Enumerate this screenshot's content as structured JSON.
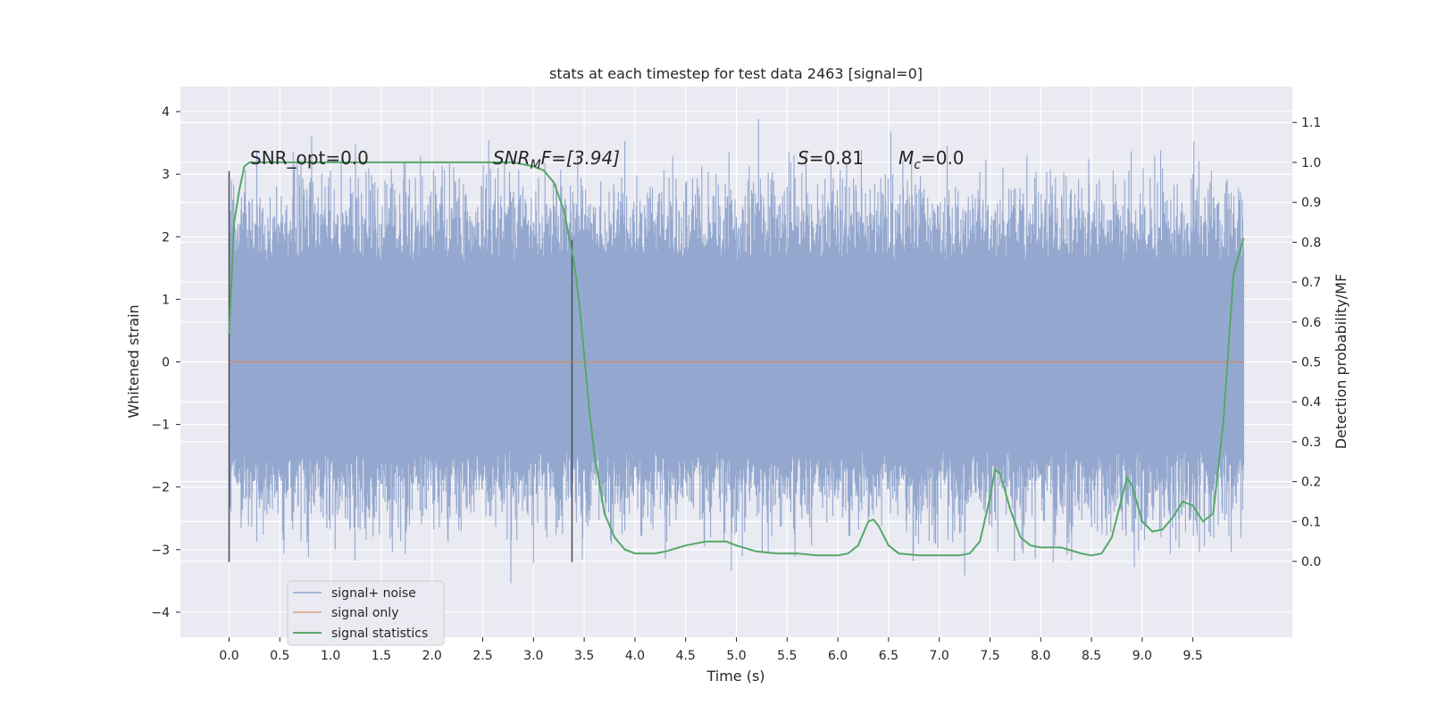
{
  "chart_data": {
    "type": "line",
    "title": "stats at each timestep for test data 2463 [signal=0]",
    "xlabel": "Time (s)",
    "ylabel": "Whitened strain",
    "y2label": "Detection probability/MF",
    "xlim": [
      -0.48,
      10.48
    ],
    "ylim": [
      -4.4,
      4.4
    ],
    "y2lim": [
      -0.19,
      1.19
    ],
    "x_ticks": [
      "0.0",
      "0.5",
      "1.0",
      "1.5",
      "2.0",
      "2.5",
      "3.0",
      "3.5",
      "4.0",
      "4.5",
      "5.0",
      "5.5",
      "6.0",
      "6.5",
      "7.0",
      "7.5",
      "8.0",
      "8.5",
      "9.0",
      "9.5"
    ],
    "y_ticks": [
      "4",
      "3",
      "2",
      "1",
      "0",
      "−1",
      "−2",
      "−3",
      "−4"
    ],
    "y2_ticks": [
      "1.1",
      "1.0",
      "0.9",
      "0.8",
      "0.7",
      "0.6",
      "0.5",
      "0.4",
      "0.3",
      "0.2",
      "0.1",
      "0.0"
    ],
    "grid": true,
    "legend_position": "bottom-left",
    "annotations": {
      "snr_opt": "SNR_opt=0.0",
      "snr_mf_main": "SNR",
      "snr_mf_sub": "M",
      "snr_mf_rest": "F=[3.94]",
      "s_italic": "S",
      "s_rest": "=0.81",
      "mc_italic": "M",
      "mc_sub": "c",
      "mc_rest": "=0.0"
    },
    "series": [
      {
        "name": "signal+ noise",
        "color": "#8fa4cc",
        "description_values": {
          "x_start": 0.0,
          "x_end": 10.0,
          "typical_range": [
            -2.5,
            3.0
          ]
        }
      },
      {
        "name": "signal only",
        "color": "#dd8452",
        "x": [
          0.0,
          10.0
        ],
        "y": [
          0.0,
          0.0
        ]
      },
      {
        "name": "signal statistics",
        "color": "#55a868",
        "x": [
          0.0,
          0.05,
          0.1,
          0.15,
          0.2,
          0.3,
          0.5,
          1.0,
          1.5,
          2.0,
          2.5,
          2.8,
          3.0,
          3.1,
          3.2,
          3.3,
          3.4,
          3.45,
          3.5,
          3.55,
          3.6,
          3.7,
          3.8,
          3.9,
          4.0,
          4.1,
          4.2,
          4.3,
          4.5,
          4.7,
          4.9,
          5.0,
          5.2,
          5.4,
          5.6,
          5.8,
          6.0,
          6.1,
          6.2,
          6.3,
          6.35,
          6.4,
          6.5,
          6.6,
          6.8,
          7.0,
          7.2,
          7.3,
          7.4,
          7.5,
          7.55,
          7.6,
          7.7,
          7.8,
          7.9,
          8.0,
          8.2,
          8.4,
          8.5,
          8.6,
          8.7,
          8.8,
          8.85,
          8.9,
          9.0,
          9.1,
          9.2,
          9.3,
          9.4,
          9.5,
          9.6,
          9.7,
          9.8,
          9.9,
          10.0
        ],
        "y": [
          0.57,
          0.85,
          0.93,
          0.99,
          1.0,
          1.0,
          1.0,
          1.0,
          1.0,
          1.0,
          1.0,
          1.0,
          0.99,
          0.98,
          0.95,
          0.88,
          0.75,
          0.65,
          0.52,
          0.38,
          0.27,
          0.12,
          0.06,
          0.03,
          0.02,
          0.02,
          0.02,
          0.025,
          0.04,
          0.05,
          0.05,
          0.04,
          0.025,
          0.02,
          0.02,
          0.015,
          0.015,
          0.02,
          0.04,
          0.1,
          0.105,
          0.09,
          0.04,
          0.02,
          0.015,
          0.015,
          0.015,
          0.02,
          0.05,
          0.16,
          0.23,
          0.22,
          0.13,
          0.06,
          0.04,
          0.035,
          0.035,
          0.02,
          0.015,
          0.02,
          0.06,
          0.16,
          0.21,
          0.19,
          0.1,
          0.075,
          0.08,
          0.11,
          0.15,
          0.14,
          0.1,
          0.12,
          0.35,
          0.72,
          0.81
        ]
      }
    ]
  }
}
